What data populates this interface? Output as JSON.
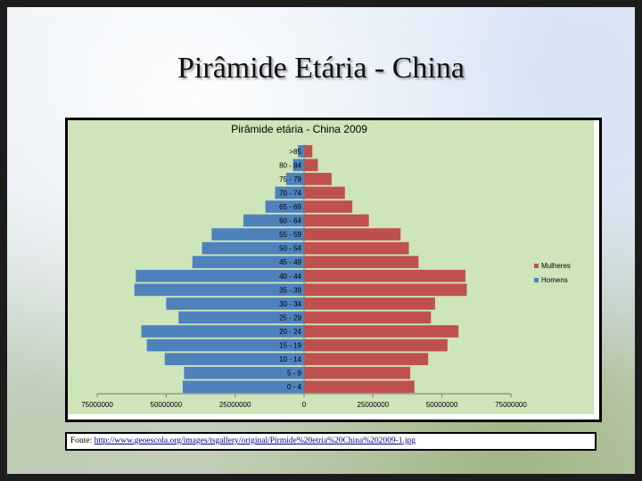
{
  "slide": {
    "title": "Pirâmide Etária - China"
  },
  "source": {
    "label": "Fonte: ",
    "url": "http://www.geoescola.org/images/tsgallery/original/Pirmide%20etria%20China%202009-1.jpg"
  },
  "chart_data": {
    "type": "bar",
    "orientation": "horizontal",
    "title": "Pirâmide etária - China 2009",
    "categories": [
      ">85",
      "80 - 84",
      "75 - 79",
      "70 - 74",
      "65 - 69",
      "60 - 64",
      "55 - 59",
      "50 - 54",
      "45 - 49",
      "40 - 44",
      "35 - 39",
      "30 - 34",
      "25 - 29",
      "20 - 24",
      "15 - 19",
      "10 - 14",
      "5 - 9",
      "0 - 4"
    ],
    "series": [
      {
        "name": "Homens",
        "color": "#4f81bd",
        "side": "left",
        "values": [
          2200000,
          4000000,
          6500000,
          10500000,
          14000000,
          22000000,
          33500000,
          37000000,
          40500000,
          61000000,
          61500000,
          50000000,
          45500000,
          59000000,
          57000000,
          50500000,
          43500000,
          44000000
        ]
      },
      {
        "name": "Mulheres",
        "color": "#c0504d",
        "side": "right",
        "values": [
          3000000,
          5000000,
          10000000,
          14800000,
          17500000,
          23500000,
          35000000,
          38000000,
          41500000,
          58500000,
          59000000,
          47500000,
          46000000,
          56000000,
          52000000,
          45000000,
          38500000,
          40000000
        ]
      }
    ],
    "xlim": [
      -75000000,
      75000000
    ],
    "x_ticks": [
      "75000000",
      "50000000",
      "25000000",
      "0",
      "25000000",
      "50000000",
      "75000000"
    ],
    "legend": [
      "Mulheres",
      "Homens"
    ],
    "legend_position": "right",
    "grid": false,
    "background": "#cde5b9"
  }
}
